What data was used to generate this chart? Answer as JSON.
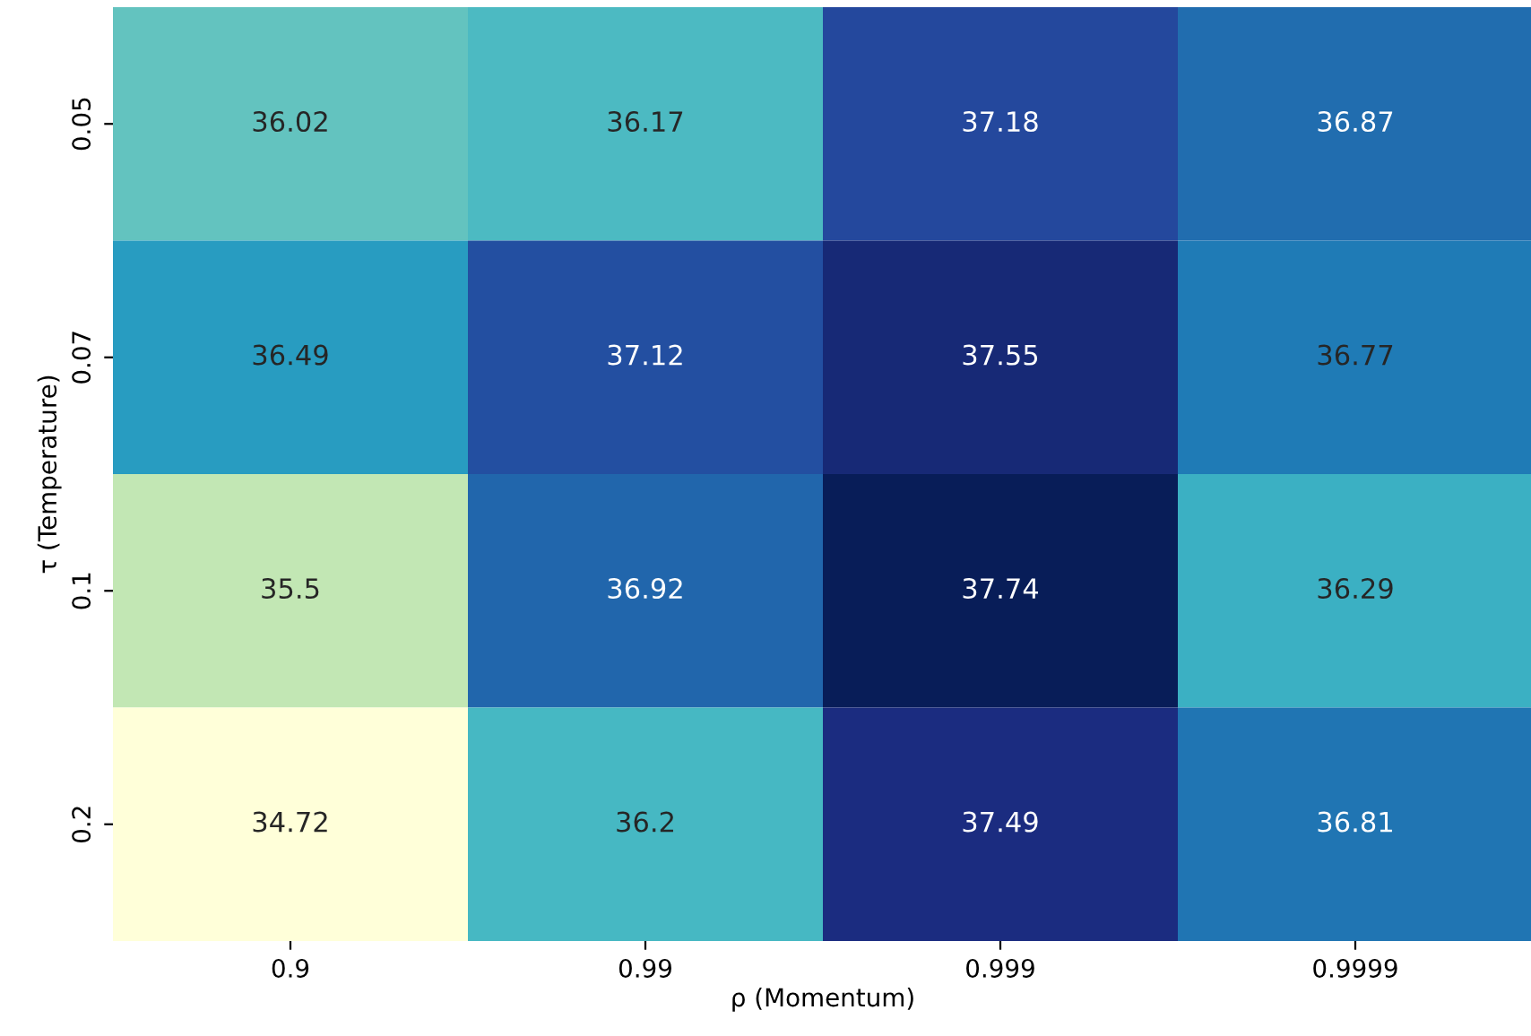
{
  "chart_data": {
    "type": "heatmap",
    "xlabel": "ρ (Momentum)",
    "ylabel": "τ (Temperature)",
    "categories": [
      "0.9",
      "0.99",
      "0.999",
      "0.9999"
    ],
    "y_categories": [
      "0.05",
      "0.07",
      "0.1",
      "0.2"
    ],
    "cells": [
      [
        36.02,
        36.17,
        37.18,
        36.87
      ],
      [
        36.49,
        37.12,
        37.55,
        36.77
      ],
      [
        35.5,
        36.92,
        37.74,
        36.29
      ],
      [
        34.72,
        36.2,
        37.49,
        36.81
      ]
    ],
    "data_labels": true
  }
}
